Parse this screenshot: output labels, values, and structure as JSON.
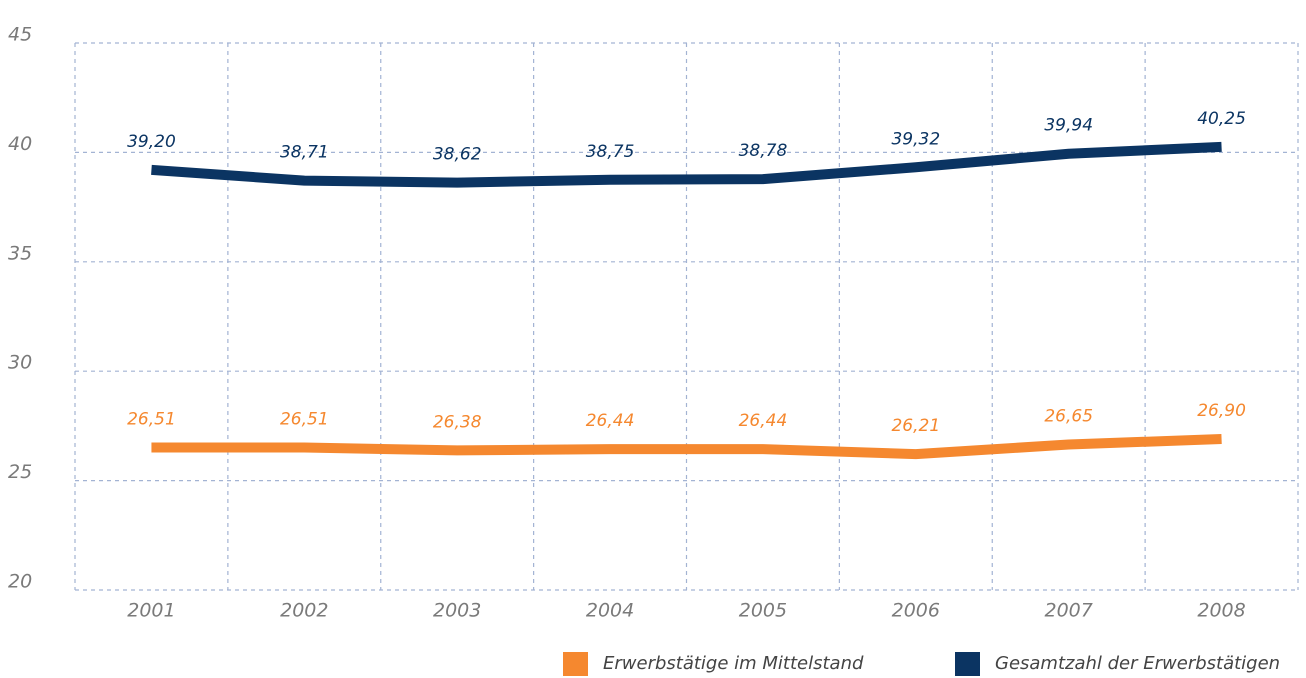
{
  "chart_data": {
    "type": "line",
    "categories": [
      "2001",
      "2002",
      "2003",
      "2004",
      "2005",
      "2006",
      "2007",
      "2008"
    ],
    "series": [
      {
        "name": "Erwerbstätige im Mittelstand",
        "color": "#f5882f",
        "values": [
          26.51,
          26.51,
          26.38,
          26.44,
          26.44,
          26.21,
          26.65,
          26.9
        ],
        "value_labels": [
          "26,51",
          "26,51",
          "26,38",
          "26,44",
          "26,44",
          "26,21",
          "26,65",
          "26,90"
        ]
      },
      {
        "name": "Gesamtzahl der Erwerbstätigen",
        "color": "#0b3462",
        "values": [
          39.2,
          38.71,
          38.62,
          38.75,
          38.78,
          39.32,
          39.94,
          40.25
        ],
        "value_labels": [
          "39,20",
          "38,71",
          "38,62",
          "38,75",
          "38,78",
          "39,32",
          "39,94",
          "40,25"
        ]
      }
    ],
    "ylim": [
      20,
      45
    ],
    "yticks": [
      20,
      25,
      30,
      35,
      40,
      45
    ],
    "grid": true,
    "legend": "bottom"
  }
}
